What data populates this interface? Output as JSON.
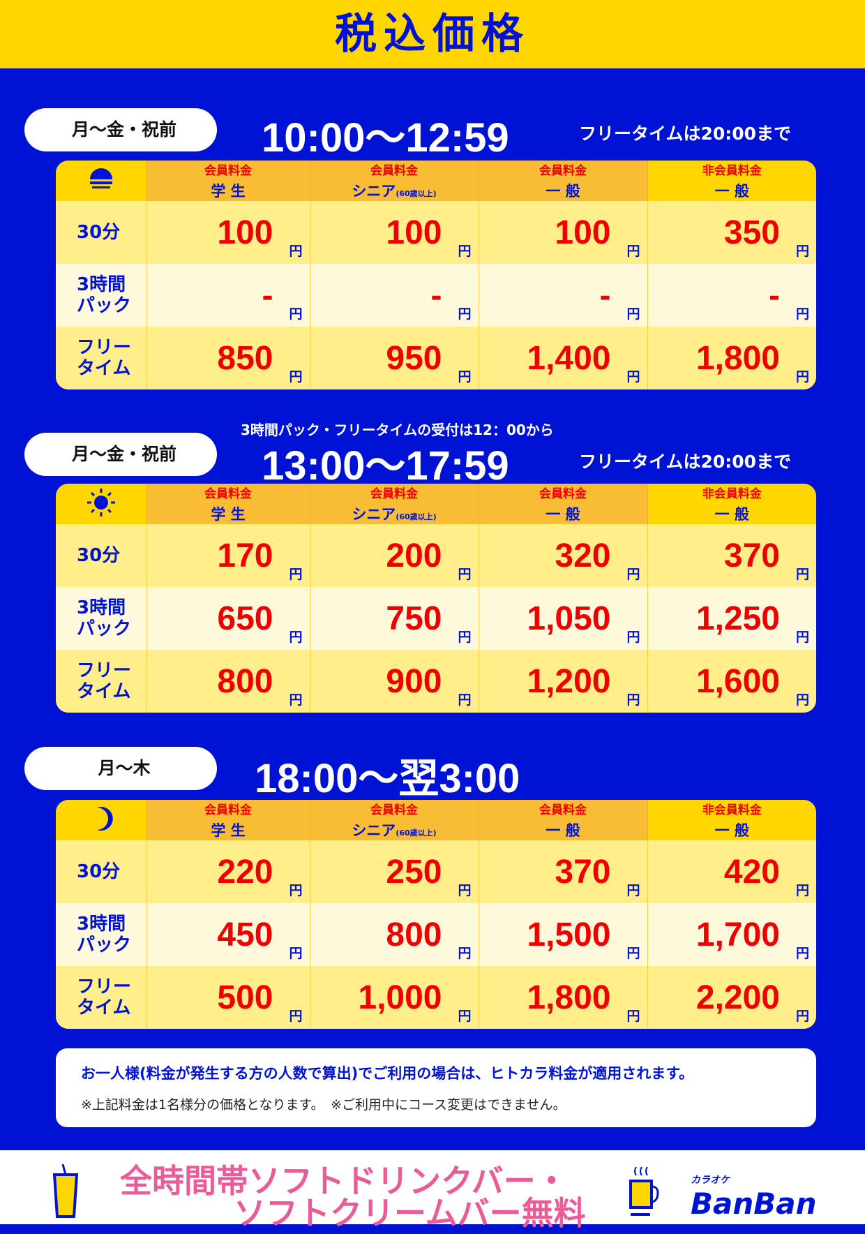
{
  "title": "税込価格",
  "colors": {
    "blue": "#0012d4",
    "yellow": "#ffd600",
    "red": "#f00000",
    "pink": "#ea5c97"
  },
  "columns": [
    {
      "a": "会員料金",
      "b": "学 生",
      "sub": ""
    },
    {
      "a": "会員料金",
      "b": "シニア",
      "sub": "(60歳以上)"
    },
    {
      "a": "会員料金",
      "b": "一 般",
      "sub": ""
    },
    {
      "a": "非会員料金",
      "b": "一 般",
      "sub": ""
    }
  ],
  "row_labels": [
    [
      "30分",
      ""
    ],
    [
      "3時間",
      "パック"
    ],
    [
      "フリー",
      "タイム"
    ]
  ],
  "yen": "円",
  "sections": [
    {
      "days": "月〜金・祝前",
      "time": "10:00〜12:59",
      "note": "フリータイムは20:00まで",
      "icon": "sunrise-icon",
      "rows": [
        [
          "100",
          "100",
          "100",
          "350"
        ],
        [
          "-",
          "-",
          "-",
          "-"
        ],
        [
          "850",
          "950",
          "1,400",
          "1,800"
        ]
      ]
    },
    {
      "days": "月〜金・祝前",
      "time": "13:00〜17:59",
      "note": "フリータイムは20:00まで",
      "icon": "sun-icon",
      "rows": [
        [
          "170",
          "200",
          "320",
          "370"
        ],
        [
          "650",
          "750",
          "1,050",
          "1,250"
        ],
        [
          "800",
          "900",
          "1,200",
          "1,600"
        ]
      ]
    },
    {
      "days": "月〜木",
      "time": "18:00〜翌3:00",
      "note": "",
      "icon": "moon-icon",
      "rows": [
        [
          "220",
          "250",
          "370",
          "420"
        ],
        [
          "450",
          "800",
          "1,500",
          "1,700"
        ],
        [
          "500",
          "1,000",
          "1,800",
          "2,200"
        ]
      ]
    }
  ],
  "notice": "3時間パック・フリータイムの受付は12：00から",
  "notes": {
    "line1": "お一人様(料金が発生する方の人数で算出)でご利用の場合は、ヒトカラ料金が適用されます。",
    "line2": "※上記料金は1名様分の価格となります。　※ご利用中にコース変更はできません。"
  },
  "promo": {
    "line1": "全時間帯ソフトドリンクバー・",
    "line2": "ソフトクリームバー無料"
  },
  "logo": {
    "small": "カラオケ",
    "main": "BanBan"
  }
}
